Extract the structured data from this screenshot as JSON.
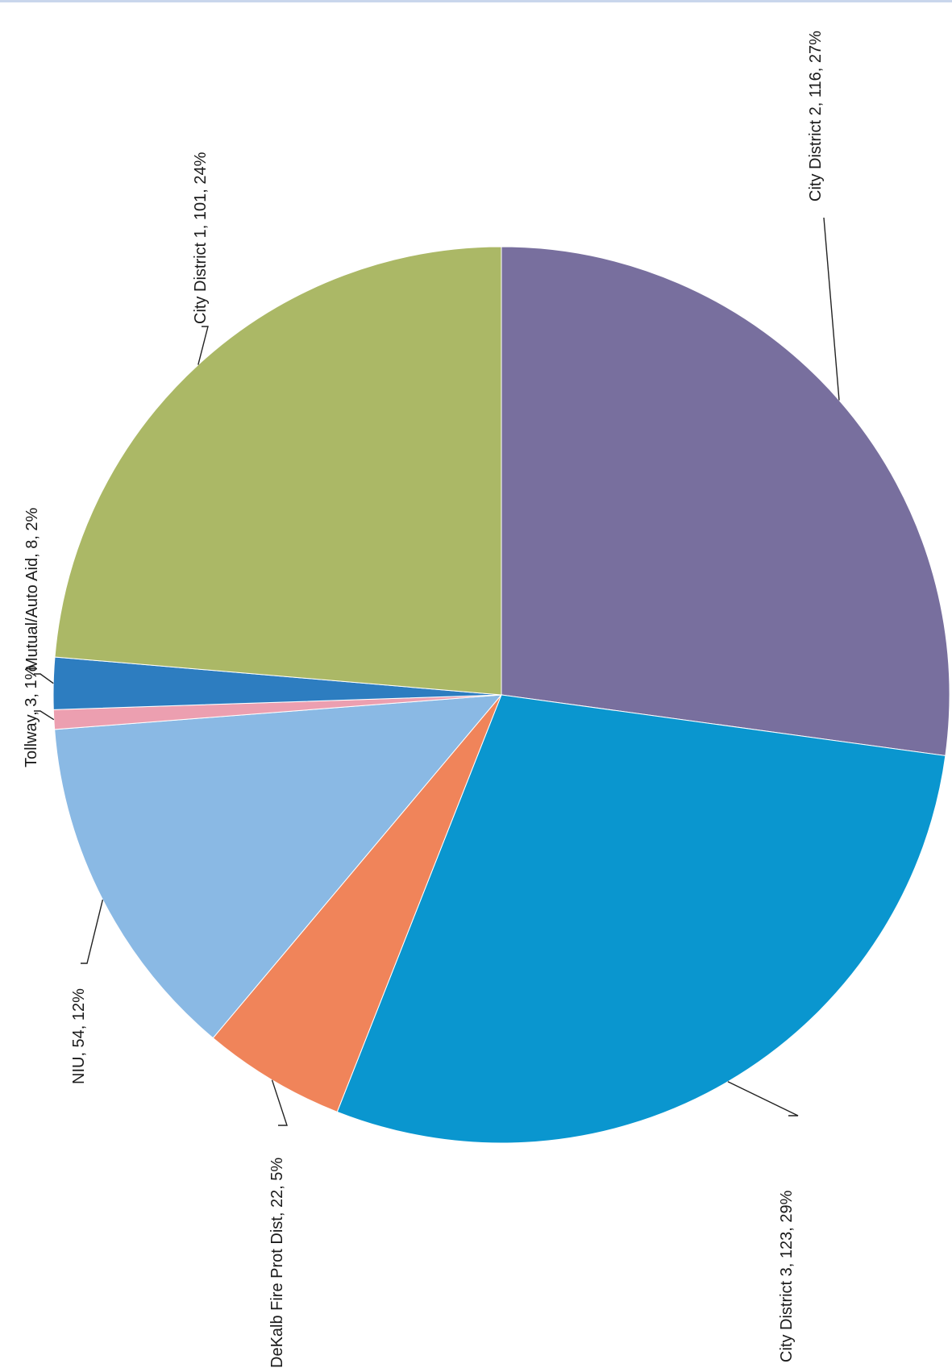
{
  "chart_data": {
    "type": "pie",
    "title": "",
    "slices": [
      {
        "label": "City District 2, 116, 27%",
        "name": "City District 2",
        "value": 116,
        "percent": 27,
        "color": "#786f9e"
      },
      {
        "label": "City District 3, 123, 29%",
        "name": "City District 3",
        "value": 123,
        "percent": 29,
        "color": "#0a96cf"
      },
      {
        "label": "DeKalb Fire Prot Dist, 22, 5%",
        "name": "DeKalb Fire Prot Dist",
        "value": 22,
        "percent": 5,
        "color": "#f0845a"
      },
      {
        "label": "NIU, 54, 12%",
        "name": "NIU",
        "value": 54,
        "percent": 12,
        "color": "#8ab9e4"
      },
      {
        "label": "Tollway, 3, 1%",
        "name": "Tollway",
        "value": 3,
        "percent": 1,
        "color": "#ec9fb0"
      },
      {
        "label": "Mutual/Auto Aid, 8, 2%",
        "name": "Mutual/Auto Aid",
        "value": 8,
        "percent": 2,
        "color": "#2d7dc0"
      },
      {
        "label": "City District 1, 101, 24%",
        "name": "City District 1",
        "value": 101,
        "percent": 24,
        "color": "#abb866"
      }
    ],
    "label_orientation": "rotated 90 degrees counter-clockwise",
    "legend": "none"
  }
}
